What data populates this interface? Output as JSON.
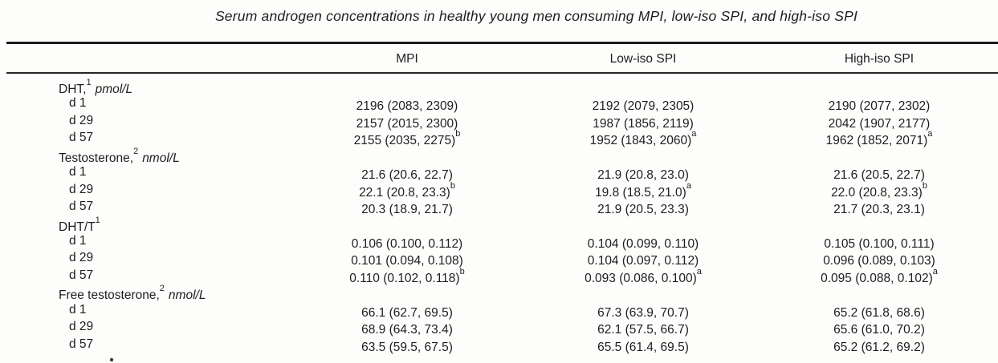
{
  "title": "Serum androgen concentrations in healthy young men consuming MPI, low-iso SPI, and high-iso SPI",
  "columns": [
    "MPI",
    "Low-iso SPI",
    "High-iso SPI"
  ],
  "sections": [
    {
      "label": "DHT,",
      "label_sup": "1",
      "unit": "pmol/L",
      "rows": [
        {
          "label": "d 1",
          "values": [
            {
              "v": "2196 (2083, 2309)",
              "s": ""
            },
            {
              "v": "2192 (2079, 2305)",
              "s": ""
            },
            {
              "v": "2190 (2077, 2302)",
              "s": ""
            }
          ]
        },
        {
          "label": "d 29",
          "values": [
            {
              "v": "2157 (2015, 2300)",
              "s": ""
            },
            {
              "v": "1987 (1856, 2119)",
              "s": ""
            },
            {
              "v": "2042 (1907, 2177)",
              "s": ""
            }
          ]
        },
        {
          "label": "d 57",
          "values": [
            {
              "v": "2155 (2035, 2275)",
              "s": "b"
            },
            {
              "v": "1952 (1843, 2060)",
              "s": "a"
            },
            {
              "v": "1962 (1852, 2071)",
              "s": "a"
            }
          ]
        }
      ]
    },
    {
      "label": "Testosterone,",
      "label_sup": "2",
      "unit": "nmol/L",
      "rows": [
        {
          "label": "d 1",
          "values": [
            {
              "v": "21.6 (20.6, 22.7)",
              "s": ""
            },
            {
              "v": "21.9 (20.8, 23.0)",
              "s": ""
            },
            {
              "v": "21.6 (20.5, 22.7)",
              "s": ""
            }
          ]
        },
        {
          "label": "d 29",
          "values": [
            {
              "v": "22.1 (20.8, 23.3)",
              "s": "b"
            },
            {
              "v": "19.8 (18.5, 21.0)",
              "s": "a"
            },
            {
              "v": "22.0 (20.8, 23.3)",
              "s": "b"
            }
          ]
        },
        {
          "label": "d 57",
          "values": [
            {
              "v": "20.3 (18.9, 21.7)",
              "s": ""
            },
            {
              "v": "21.9 (20.5, 23.3)",
              "s": ""
            },
            {
              "v": "21.7 (20.3, 23.1)",
              "s": ""
            }
          ]
        }
      ]
    },
    {
      "label": "DHT/T",
      "label_sup": "1",
      "unit": "",
      "rows": [
        {
          "label": "d 1",
          "values": [
            {
              "v": "0.106 (0.100, 0.112)",
              "s": ""
            },
            {
              "v": "0.104 (0.099, 0.110)",
              "s": ""
            },
            {
              "v": "0.105 (0.100, 0.111)",
              "s": ""
            }
          ]
        },
        {
          "label": "d 29",
          "values": [
            {
              "v": "0.101 (0.094, 0.108)",
              "s": ""
            },
            {
              "v": "0.104 (0.097, 0.112)",
              "s": ""
            },
            {
              "v": "0.096 (0.089, 0.103)",
              "s": ""
            }
          ]
        },
        {
          "label": "d 57",
          "values": [
            {
              "v": "0.110 (0.102, 0.118)",
              "s": "b"
            },
            {
              "v": "0.093 (0.086, 0.100)",
              "s": "a"
            },
            {
              "v": "0.095 (0.088, 0.102)",
              "s": "a"
            }
          ]
        }
      ]
    },
    {
      "label": "Free testosterone,",
      "label_sup": "2",
      "unit": "nmol/L",
      "rows": [
        {
          "label": "d 1",
          "values": [
            {
              "v": "66.1 (62.7, 69.5)",
              "s": ""
            },
            {
              "v": "67.3 (63.9, 70.7)",
              "s": ""
            },
            {
              "v": "65.2 (61.8, 68.6)",
              "s": ""
            }
          ]
        },
        {
          "label": "d 29",
          "values": [
            {
              "v": "68.9 (64.3, 73.4)",
              "s": ""
            },
            {
              "v": "62.1 (57.5, 66.7)",
              "s": ""
            },
            {
              "v": "65.6 (61.0, 70.2)",
              "s": ""
            }
          ]
        },
        {
          "label": "d 57",
          "values": [
            {
              "v": "63.5 (59.5, 67.5)",
              "s": ""
            },
            {
              "v": "65.5 (61.4, 69.5)",
              "s": ""
            },
            {
              "v": "65.2 (61.2, 69.2)",
              "s": ""
            }
          ]
        }
      ]
    }
  ]
}
